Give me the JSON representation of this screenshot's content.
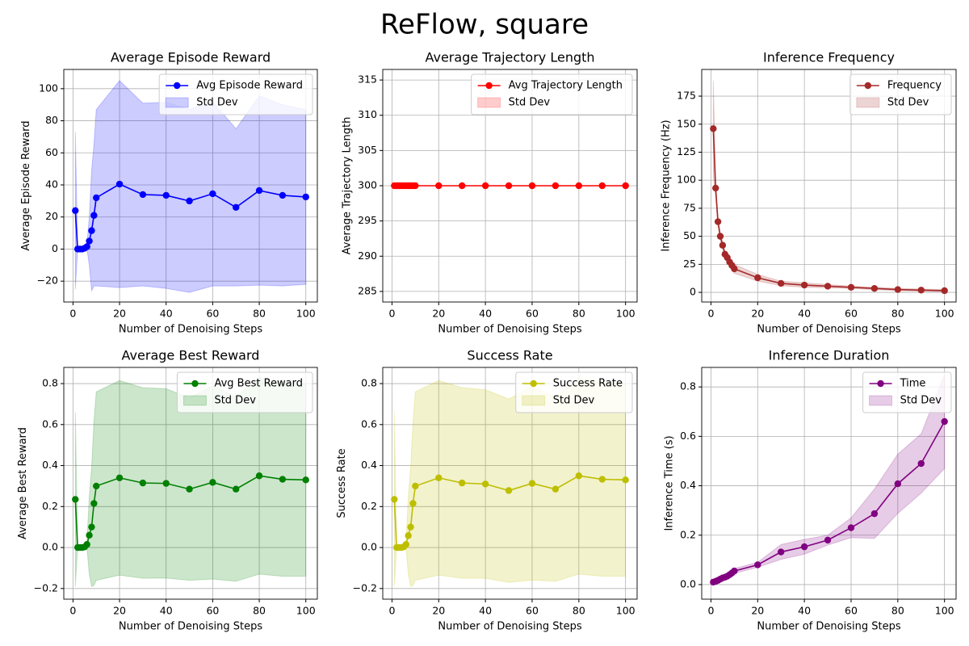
{
  "title": "ReFlow, square",
  "chart_data": [
    {
      "type": "line",
      "title": "Average Episode Reward",
      "xlabel": "Number of Denoising Steps",
      "ylabel": "Average Episode Reward",
      "x": [
        1,
        2,
        3,
        4,
        5,
        6,
        7,
        8,
        9,
        10,
        20,
        30,
        40,
        50,
        60,
        70,
        80,
        90,
        100
      ],
      "xlim": [
        -3.95,
        104.95
      ],
      "xticks": [
        0,
        20,
        40,
        60,
        80,
        100
      ],
      "ylim": [
        -33,
        112
      ],
      "yticks": [
        {
          "value": -20,
          "label": "−20"
        },
        0,
        20,
        40,
        60,
        80,
        100
      ],
      "grid": true,
      "legend": "upper right",
      "series": [
        {
          "name": "Avg Episode Reward",
          "color": "#0000ff",
          "values": [
            24,
            0,
            0,
            0,
            0.5,
            1.5,
            5,
            11.5,
            21,
            32,
            40.5,
            34,
            33.5,
            30,
            34.5,
            26,
            36.5,
            33.5,
            32.5
          ]
        },
        {
          "name": "Std Dev",
          "color": "#0000ff",
          "upper": [
            73,
            0,
            0,
            0,
            0.5,
            3,
            20,
            49,
            65,
            87,
            105,
            91,
            91.5,
            87,
            92,
            75,
            95.5,
            90,
            87
          ],
          "lower": [
            -25,
            0,
            0,
            0,
            0.5,
            0,
            -10,
            -26,
            -23,
            -23,
            -24,
            -23,
            -24.5,
            -27,
            -23,
            -23,
            -22.5,
            -23,
            -22
          ]
        }
      ]
    },
    {
      "type": "line",
      "title": "Average Trajectory Length",
      "xlabel": "Number of Denoising Steps",
      "ylabel": "Average Trajectory Length",
      "x": [
        1,
        2,
        3,
        4,
        5,
        6,
        7,
        8,
        9,
        10,
        20,
        30,
        40,
        50,
        60,
        70,
        80,
        90,
        100
      ],
      "xlim": [
        -3.95,
        104.95
      ],
      "xticks": [
        0,
        20,
        40,
        60,
        80,
        100
      ],
      "ylim": [
        283.5,
        316.5
      ],
      "yticks": [
        285,
        290,
        295,
        300,
        305,
        310,
        315
      ],
      "grid": true,
      "legend": "upper right",
      "series": [
        {
          "name": "Avg Trajectory Length",
          "color": "#ff0000",
          "values": [
            300,
            300,
            300,
            300,
            300,
            300,
            300,
            300,
            300,
            300,
            300,
            300,
            300,
            300,
            300,
            300,
            300,
            300,
            300
          ]
        },
        {
          "name": "Std Dev",
          "color": "#ff0000",
          "upper": [
            300,
            300,
            300,
            300,
            300,
            300,
            300,
            300,
            300,
            300,
            300,
            300,
            300,
            300,
            300,
            300,
            300,
            300,
            300
          ],
          "lower": [
            300,
            300,
            300,
            300,
            300,
            300,
            300,
            300,
            300,
            300,
            300,
            300,
            300,
            300,
            300,
            300,
            300,
            300,
            300
          ]
        }
      ]
    },
    {
      "type": "line",
      "title": "Inference Frequency",
      "xlabel": "Number of Denoising Steps",
      "ylabel": "Inference Frequency (Hz)",
      "x": [
        1,
        2,
        3,
        4,
        5,
        6,
        7,
        8,
        9,
        10,
        20,
        30,
        40,
        50,
        60,
        70,
        80,
        90,
        100
      ],
      "xlim": [
        -3.95,
        104.95
      ],
      "xticks": [
        0,
        20,
        40,
        60,
        80,
        100
      ],
      "ylim": [
        -8.6,
        198.8
      ],
      "yticks": [
        0,
        25,
        50,
        75,
        100,
        125,
        150,
        175
      ],
      "grid": true,
      "legend": "upper right",
      "series": [
        {
          "name": "Frequency",
          "color": "#a52a2a",
          "values": [
            146,
            93,
            63,
            50,
            42,
            34,
            31,
            27,
            24,
            21,
            13,
            8,
            6.5,
            5.5,
            4.5,
            3.5,
            2.5,
            2,
            1.5
          ]
        },
        {
          "name": "Std Dev",
          "color": "#a52a2a",
          "upper": [
            189,
            100,
            67,
            53,
            45,
            37,
            34,
            30,
            27,
            25,
            16,
            10,
            8.5,
            7,
            5.5,
            4.5,
            3.5,
            3,
            2.5
          ],
          "lower": [
            103,
            86,
            59,
            47,
            39,
            31,
            28,
            24,
            21,
            17,
            10,
            6,
            4.5,
            4,
            3.5,
            2.5,
            1.5,
            1,
            0.5
          ]
        }
      ]
    },
    {
      "type": "line",
      "title": "Average Best Reward",
      "xlabel": "Number of Denoising Steps",
      "ylabel": "Average Best Reward",
      "x": [
        1,
        2,
        3,
        4,
        5,
        6,
        7,
        8,
        9,
        10,
        20,
        30,
        40,
        50,
        60,
        70,
        80,
        90,
        100
      ],
      "xlim": [
        -3.95,
        104.95
      ],
      "xticks": [
        0,
        20,
        40,
        60,
        80,
        100
      ],
      "ylim": [
        -0.252,
        0.879
      ],
      "yticks": [
        {
          "value": -0.2,
          "label": "−0.2"
        },
        {
          "value": 0,
          "label": "0.0"
        },
        0.2,
        0.4,
        0.6,
        0.8
      ],
      "grid": true,
      "legend": "upper right",
      "series": [
        {
          "name": "Avg Best Reward",
          "color": "#008000",
          "values": [
            0.235,
            0,
            0,
            0,
            0.003,
            0.015,
            0.06,
            0.1,
            0.215,
            0.3,
            0.34,
            0.315,
            0.313,
            0.285,
            0.318,
            0.285,
            0.35,
            0.333,
            0.33
          ]
        },
        {
          "name": "Std Dev",
          "color": "#008000",
          "upper": [
            0.66,
            0,
            0,
            0,
            0.003,
            0.03,
            0.25,
            0.39,
            0.615,
            0.76,
            0.815,
            0.78,
            0.775,
            0.73,
            0.79,
            0.735,
            0.83,
            0.806,
            0.8
          ],
          "lower": [
            -0.19,
            0,
            0,
            0,
            0.003,
            0,
            -0.13,
            -0.19,
            -0.185,
            -0.16,
            -0.135,
            -0.15,
            -0.149,
            -0.16,
            -0.154,
            -0.165,
            -0.13,
            -0.14,
            -0.14
          ]
        }
      ]
    },
    {
      "type": "line",
      "title": "Success Rate",
      "xlabel": "Number of Denoising Steps",
      "ylabel": "Success Rate",
      "x": [
        1,
        2,
        3,
        4,
        5,
        6,
        7,
        8,
        9,
        10,
        20,
        30,
        40,
        50,
        60,
        70,
        80,
        90,
        100
      ],
      "xlim": [
        -3.95,
        104.95
      ],
      "xticks": [
        0,
        20,
        40,
        60,
        80,
        100
      ],
      "ylim": [
        -0.252,
        0.879
      ],
      "yticks": [
        {
          "value": -0.2,
          "label": "−0.2"
        },
        {
          "value": 0,
          "label": "0.0"
        },
        0.2,
        0.4,
        0.6,
        0.8
      ],
      "grid": true,
      "legend": "upper right",
      "series": [
        {
          "name": "Success Rate",
          "color": "#bfbf00",
          "values": [
            0.235,
            0,
            0,
            0,
            0.003,
            0.015,
            0.058,
            0.1,
            0.215,
            0.3,
            0.34,
            0.315,
            0.31,
            0.278,
            0.313,
            0.285,
            0.35,
            0.333,
            0.33
          ]
        },
        {
          "name": "Std Dev",
          "color": "#bfbf00",
          "upper": [
            0.66,
            0,
            0,
            0,
            0.003,
            0.03,
            0.25,
            0.39,
            0.615,
            0.76,
            0.815,
            0.78,
            0.77,
            0.725,
            0.785,
            0.735,
            0.83,
            0.806,
            0.8
          ],
          "lower": [
            -0.19,
            0,
            0,
            0,
            0.003,
            0,
            -0.13,
            -0.19,
            -0.185,
            -0.16,
            -0.135,
            -0.15,
            -0.15,
            -0.17,
            -0.159,
            -0.165,
            -0.13,
            -0.14,
            -0.14
          ]
        }
      ]
    },
    {
      "type": "line",
      "title": "Inference Duration",
      "xlabel": "Number of Denoising Steps",
      "ylabel": "Inference Time (s)",
      "x": [
        1,
        2,
        3,
        4,
        5,
        6,
        7,
        8,
        9,
        10,
        20,
        30,
        40,
        50,
        60,
        70,
        80,
        90,
        100
      ],
      "xlim": [
        -3.95,
        104.95
      ],
      "xticks": [
        0,
        20,
        40,
        60,
        80,
        100
      ],
      "ylim": [
        -0.059,
        0.879
      ],
      "yticks": [
        {
          "value": 0,
          "label": "0.0"
        },
        0.2,
        0.4,
        0.6,
        0.8
      ],
      "grid": true,
      "legend": "upper right",
      "series": [
        {
          "name": "Time",
          "color": "#800080",
          "values": [
            0.01,
            0.013,
            0.017,
            0.022,
            0.027,
            0.03,
            0.034,
            0.04,
            0.047,
            0.055,
            0.08,
            0.132,
            0.153,
            0.18,
            0.23,
            0.287,
            0.408,
            0.49,
            0.66
          ]
        },
        {
          "name": "Std Dev",
          "color": "#800080",
          "upper": [
            0.013,
            0.016,
            0.021,
            0.027,
            0.032,
            0.036,
            0.041,
            0.048,
            0.056,
            0.065,
            0.09,
            0.162,
            0.183,
            0.2,
            0.27,
            0.387,
            0.528,
            0.61,
            0.85
          ],
          "lower": [
            0.007,
            0.01,
            0.013,
            0.017,
            0.022,
            0.024,
            0.027,
            0.032,
            0.038,
            0.045,
            0.07,
            0.102,
            0.123,
            0.16,
            0.19,
            0.187,
            0.288,
            0.37,
            0.47
          ]
        }
      ]
    }
  ]
}
